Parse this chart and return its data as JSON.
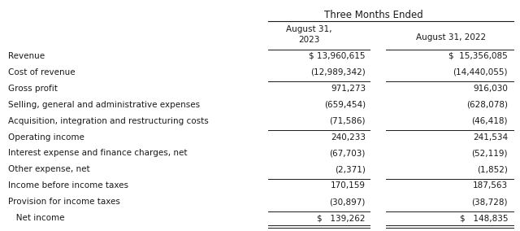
{
  "title": "Three Months Ended",
  "col1_header_line1": "August 31,",
  "col1_header_line2": "2023",
  "col2_header": "August 31, 2022",
  "rows": [
    {
      "label": "Revenue",
      "col1": "$ 13,960,615",
      "col2": "$  15,356,085",
      "line_above": true,
      "line_below": false
    },
    {
      "label": "Cost of revenue",
      "col1": "(12,989,342)",
      "col2": "(14,440,055)",
      "line_above": false,
      "line_below": false
    },
    {
      "label": "Gross profit",
      "col1": "971,273",
      "col2": "916,030",
      "line_above": true,
      "line_below": false
    },
    {
      "label": "Selling, general and administrative expenses",
      "col1": "(659,454)",
      "col2": "(628,078)",
      "line_above": false,
      "line_below": false
    },
    {
      "label": "Acquisition, integration and restructuring costs",
      "col1": "(71,586)",
      "col2": "(46,418)",
      "line_above": false,
      "line_below": false
    },
    {
      "label": "Operating income",
      "col1": "240,233",
      "col2": "241,534",
      "line_above": true,
      "line_below": false
    },
    {
      "label": "Interest expense and finance charges, net",
      "col1": "(67,703)",
      "col2": "(52,119)",
      "line_above": false,
      "line_below": false
    },
    {
      "label": "Other expense, net",
      "col1": "(2,371)",
      "col2": "(1,852)",
      "line_above": false,
      "line_below": false
    },
    {
      "label": "Income before income taxes",
      "col1": "170,159",
      "col2": "187,563",
      "line_above": true,
      "line_below": false
    },
    {
      "label": "Provision for income taxes",
      "col1": "(30,897)",
      "col2": "(38,728)",
      "line_above": false,
      "line_below": false
    },
    {
      "label": "   Net income",
      "col1": "$   139,262",
      "col2": "$   148,835",
      "line_above": true,
      "line_below": true
    }
  ],
  "font_family": "DejaVu Sans",
  "font_size": 7.5,
  "text_color": "#1a1a1a",
  "bg_color": "#ffffff",
  "line_color": "#1a1a1a"
}
